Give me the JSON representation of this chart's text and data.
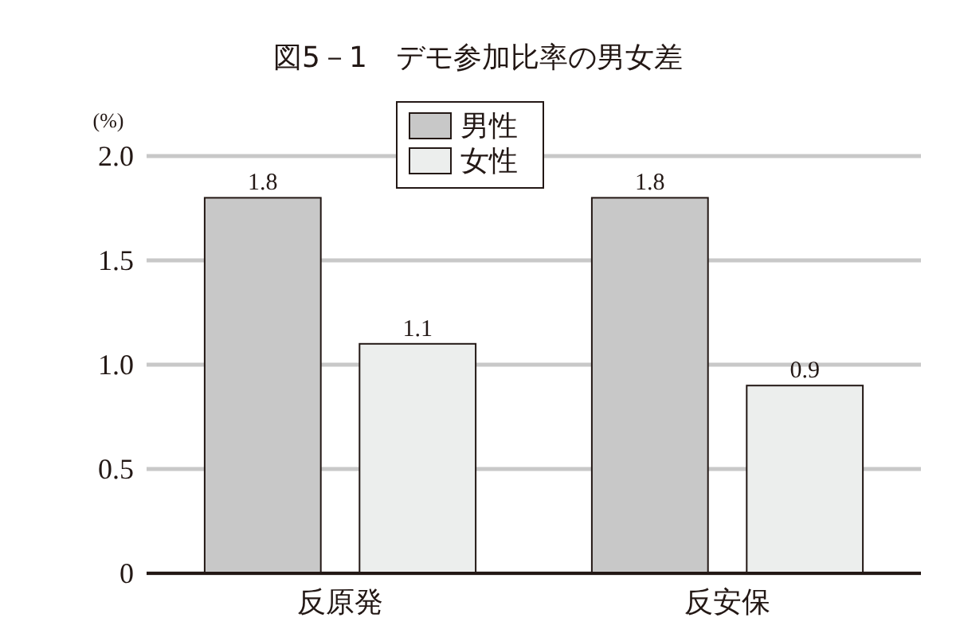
{
  "chart_data": {
    "type": "bar",
    "title": "図5－1　デモ参加比率の男女差",
    "ylabel": "(%)",
    "categories": [
      "反原発",
      "反安保"
    ],
    "series": [
      {
        "name": "男性",
        "color": "#c8c8c8",
        "values": [
          1.8,
          1.8
        ]
      },
      {
        "name": "女性",
        "color": "#eceeed",
        "values": [
          1.1,
          0.9
        ]
      }
    ],
    "ylim": [
      0,
      2.0
    ],
    "yticks": [
      {
        "value": 0,
        "label": "0"
      },
      {
        "value": 0.5,
        "label": "0.5"
      },
      {
        "value": 1,
        "label": "1.0"
      },
      {
        "value": 1.5,
        "label": "1.5"
      },
      {
        "value": 2,
        "label": "2.0"
      }
    ],
    "grid": "y",
    "legend": "top",
    "data_labels": true
  }
}
